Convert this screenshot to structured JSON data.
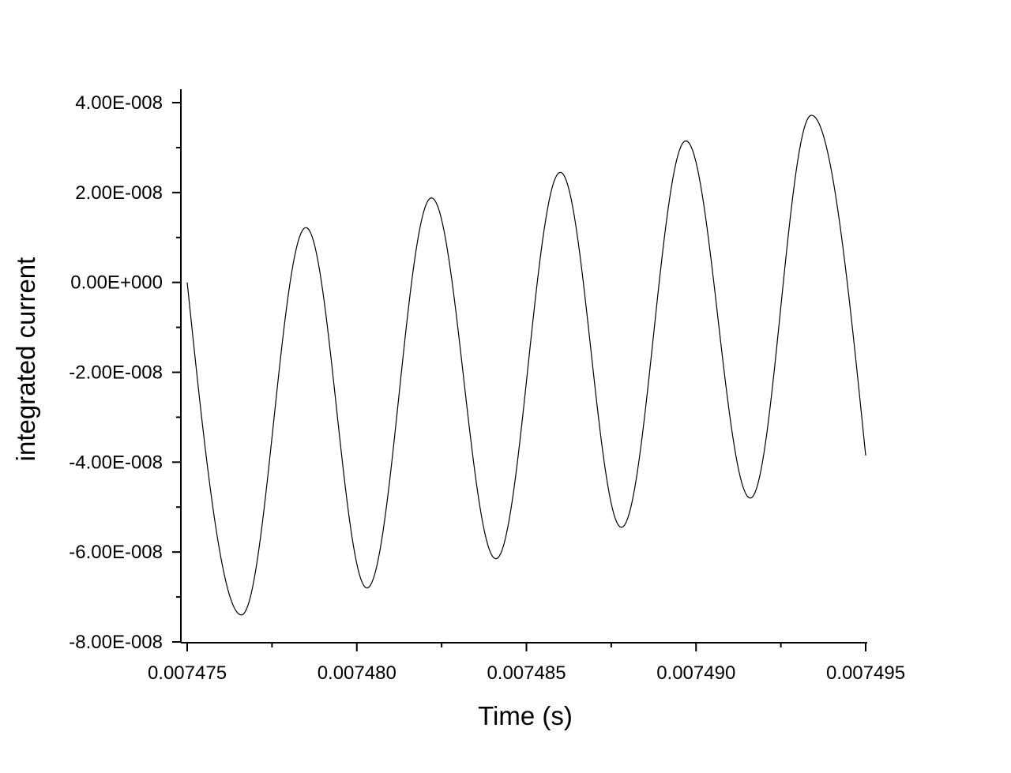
{
  "chart_data": {
    "type": "line",
    "xlabel": "Time (s)",
    "ylabel": "integrated current",
    "xlim": [
      0.007475,
      0.007495
    ],
    "ylim": [
      -8e-08,
      4.3e-08
    ],
    "x_ticks": [
      0.007475,
      0.00748,
      0.007485,
      0.00749,
      0.007495
    ],
    "x_tick_labels": [
      "0.007475",
      "0.007480",
      "0.007485",
      "0.007490",
      "0.007495"
    ],
    "y_ticks": [
      4e-08,
      2e-08,
      0,
      -2e-08,
      -4e-08,
      -6e-08,
      -8e-08
    ],
    "y_tick_labels": [
      "4.00E-008",
      "2.00E-008",
      "0.00E+000",
      "-2.00E-008",
      "-4.00E-008",
      "-6.00E-008",
      "-8.00E-008"
    ],
    "grid": false,
    "line_color": "#000000",
    "series": [
      {
        "x": [
          0.007475,
          0.0074766,
          0.0074785,
          0.0074803,
          0.0074822,
          0.0074841,
          0.007486,
          0.0074878,
          0.0074897,
          0.0074916,
          0.0074934,
          0.007495
        ],
        "y": [
          0.0,
          -7.4e-08,
          1.22e-08,
          -6.8e-08,
          1.88e-08,
          -6.15e-08,
          2.45e-08,
          -5.45e-08,
          3.15e-08,
          -4.8e-08,
          3.72e-08,
          -3.85e-08
        ]
      }
    ]
  }
}
